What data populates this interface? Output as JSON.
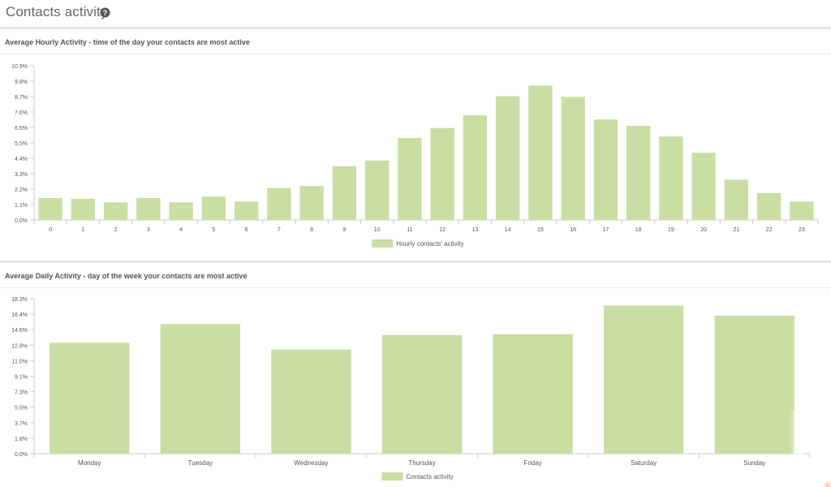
{
  "header": {
    "title": "Contacts activity",
    "help_icon": "question-circle-icon"
  },
  "colors": {
    "bar": "#c9dea3",
    "axis": "#cccccc",
    "text": "#555555"
  },
  "chart_data": [
    {
      "type": "bar",
      "title": "Average Hourly Activity - time of the day your contacts are most active",
      "categories": [
        "0",
        "1",
        "2",
        "3",
        "4",
        "5",
        "6",
        "7",
        "8",
        "9",
        "10",
        "11",
        "12",
        "13",
        "14",
        "15",
        "16",
        "17",
        "18",
        "19",
        "20",
        "21",
        "22",
        "23"
      ],
      "series": [
        {
          "name": "Hourly contacts' activity",
          "values": [
            1.55,
            1.5,
            1.25,
            1.55,
            1.25,
            1.65,
            1.3,
            2.25,
            2.4,
            3.8,
            4.2,
            5.8,
            6.5,
            7.4,
            8.75,
            9.5,
            8.7,
            7.1,
            6.65,
            5.9,
            4.75,
            2.85,
            1.9,
            1.3
          ]
        }
      ],
      "ylim": [
        0,
        10.9
      ],
      "yticks": [
        "0.0%",
        "1.1%",
        "2.2%",
        "3.3%",
        "4.4%",
        "5.5%",
        "6.5%",
        "7.6%",
        "8.7%",
        "9.8%",
        "10.9%"
      ],
      "legend": "bottom-center"
    },
    {
      "type": "bar",
      "title": "Average Daily Activity - day of the week your contacts are most active",
      "categories": [
        "Monday",
        "Tuesday",
        "Wednesday",
        "Thursday",
        "Friday",
        "Saturday",
        "Sunday"
      ],
      "series": [
        {
          "name": "Contacts activity",
          "values": [
            13.1,
            15.3,
            12.3,
            14.0,
            14.1,
            17.5,
            16.3
          ]
        }
      ],
      "ylim": [
        0,
        18.3
      ],
      "yticks": [
        "0.0%",
        "1.8%",
        "3.7%",
        "5.5%",
        "7.3%",
        "9.1%",
        "11.0%",
        "12.8%",
        "14.6%",
        "16.4%",
        "18.3%"
      ],
      "legend": "bottom-center"
    }
  ]
}
